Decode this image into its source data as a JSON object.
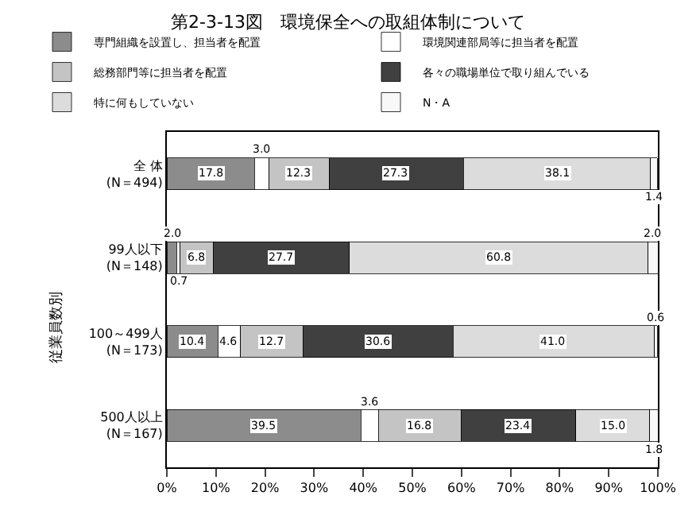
{
  "chart_data": {
    "type": "bar",
    "orientation": "horizontal",
    "stacked": true,
    "title": "第2-3-13図　環境保全への取組体制について",
    "categories": [
      "全 体\n(N＝494)",
      "99人以下\n(N＝148)",
      "100～499人\n(N＝173)",
      "500人以上\n(N＝167)"
    ],
    "series": [
      {
        "name": "専門組織を設置し、担当者を配置",
        "color": "#8c8c8c",
        "values": [
          17.8,
          2.0,
          10.4,
          39.5
        ],
        "value_labels": [
          "17.8",
          "2.0",
          "10.4",
          "39.5"
        ]
      },
      {
        "name": "環境関連部局等に担当者を配置",
        "color": "#ffffff",
        "values": [
          3.0,
          0.7,
          4.6,
          3.6
        ],
        "value_labels": [
          "3.0",
          "0.7",
          "4.6",
          "3.6"
        ]
      },
      {
        "name": "総務部門等に担当者を配置",
        "color": "#c4c4c4",
        "values": [
          12.3,
          6.8,
          12.7,
          16.8
        ],
        "value_labels": [
          "12.3",
          "6.8",
          "12.7",
          "16.8"
        ]
      },
      {
        "name": "各々の職場単位で取り組んでいる",
        "color": "#404040",
        "values": [
          27.3,
          27.7,
          30.6,
          23.4
        ],
        "value_labels": [
          "27.3",
          "27.7",
          "30.6",
          "23.4"
        ]
      },
      {
        "name": "特に何もしていない",
        "color": "#dcdcdc",
        "values": [
          38.1,
          60.8,
          41.0,
          15.0
        ],
        "value_labels": [
          "38.1",
          "60.8",
          "41.0",
          "15.0"
        ]
      },
      {
        "name": "N・A",
        "color": "#f8f8f8",
        "values": [
          1.4,
          2.0,
          0.6,
          1.8
        ],
        "value_labels": [
          "1.4",
          "2.0",
          "0.6",
          "1.8"
        ]
      }
    ],
    "xlim": [
      0,
      100
    ],
    "xticks": [
      {
        "value": 0,
        "label": "0%"
      },
      {
        "value": 10,
        "label": "10%"
      },
      {
        "value": 20,
        "label": "20%"
      },
      {
        "value": 30,
        "label": "30%"
      },
      {
        "value": 40,
        "label": "40%"
      },
      {
        "value": 50,
        "label": "50%"
      },
      {
        "value": 60,
        "label": "60%"
      },
      {
        "value": 70,
        "label": "70%"
      },
      {
        "value": 80,
        "label": "80%"
      },
      {
        "value": 90,
        "label": "90%"
      },
      {
        "value": 100,
        "label": "100%"
      }
    ],
    "legend": "top",
    "annotations": [
      "従業員数別"
    ]
  }
}
